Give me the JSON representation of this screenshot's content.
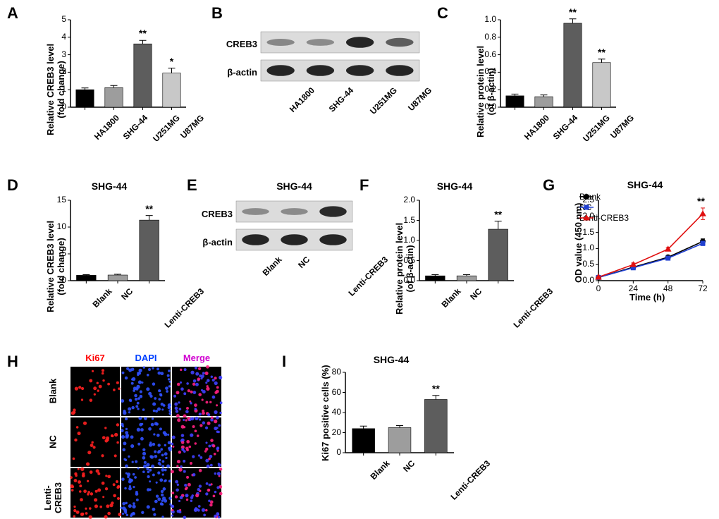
{
  "panelA": {
    "label": "A",
    "type": "bar",
    "ylabel": "Relative CREB3 level\n(fold change)",
    "categories": [
      "HA1800",
      "SHG-44",
      "U251MG",
      "U87MG"
    ],
    "values": [
      1.0,
      1.12,
      3.62,
      1.95
    ],
    "errors": [
      0.1,
      0.12,
      0.2,
      0.28
    ],
    "sig": [
      "",
      "",
      "**",
      "*"
    ],
    "bar_colors": [
      "#000000",
      "#9d9d9d",
      "#5d5d5d",
      "#c8c8c8"
    ],
    "ylim": [
      0,
      5
    ],
    "ytick_step": 1
  },
  "panelB": {
    "label": "B",
    "type": "western",
    "rows": [
      "CREB3",
      "β-actin"
    ],
    "lanes": [
      "HA1800",
      "SHG-44",
      "U251MG",
      "U87MG"
    ]
  },
  "panelC": {
    "label": "C",
    "type": "bar",
    "ylabel": "Relative protein level\n(of β-actin)",
    "categories": [
      "HA1800",
      "SHG-44",
      "U251MG",
      "U87MG"
    ],
    "values": [
      0.13,
      0.12,
      0.96,
      0.51
    ],
    "errors": [
      0.02,
      0.02,
      0.05,
      0.04
    ],
    "sig": [
      "",
      "",
      "**",
      "**"
    ],
    "bar_colors": [
      "#000000",
      "#9d9d9d",
      "#5d5d5d",
      "#c8c8c8"
    ],
    "ylim": [
      0,
      1.0
    ],
    "ytick_step": 0.2
  },
  "panelD": {
    "label": "D",
    "type": "bar",
    "ylabel": "Relative CREB3 level\n(fold change)",
    "title": "SHG-44",
    "categories": [
      "Blank",
      "NC",
      "Lenti-CREB3"
    ],
    "values": [
      1.0,
      1.05,
      11.3
    ],
    "errors": [
      0.12,
      0.15,
      0.85
    ],
    "sig": [
      "",
      "",
      "**"
    ],
    "bar_colors": [
      "#000000",
      "#9d9d9d",
      "#5d5d5d"
    ],
    "ylim": [
      0,
      15
    ],
    "ytick_step": 5
  },
  "panelE": {
    "label": "E",
    "type": "western",
    "title": "SHG-44",
    "rows": [
      "CREB3",
      "β-actin"
    ],
    "lanes": [
      "Blank",
      "NC",
      "Lenti-CREB3"
    ]
  },
  "panelF": {
    "label": "F",
    "type": "bar",
    "ylabel": "Relative protein level\n(of β-actin)",
    "title": "SHG-44",
    "categories": [
      "Blank",
      "NC",
      "Lenti-CREB3"
    ],
    "values": [
      0.12,
      0.12,
      1.28
    ],
    "errors": [
      0.03,
      0.03,
      0.2
    ],
    "sig": [
      "",
      "",
      "**"
    ],
    "bar_colors": [
      "#000000",
      "#9d9d9d",
      "#5d5d5d"
    ],
    "ylim": [
      0,
      2.0
    ],
    "ytick_step": 0.5
  },
  "panelG": {
    "label": "G",
    "type": "line",
    "title": "SHG-44",
    "xlabel": "Time (h)",
    "ylabel": "OD value (450 nm)",
    "x": [
      0,
      24,
      48,
      72
    ],
    "series": [
      {
        "name": "Blank",
        "color": "#000000",
        "marker": "circle",
        "y": [
          0.1,
          0.42,
          0.73,
          1.22
        ],
        "err": [
          0.02,
          0.03,
          0.04,
          0.08
        ]
      },
      {
        "name": "NC",
        "color": "#2040d0",
        "marker": "square",
        "y": [
          0.1,
          0.4,
          0.7,
          1.16
        ],
        "err": [
          0.02,
          0.03,
          0.04,
          0.07
        ]
      },
      {
        "name": "Lenti-CREB3",
        "color": "#e01010",
        "marker": "triangle",
        "y": [
          0.11,
          0.5,
          0.98,
          2.08
        ],
        "err": [
          0.03,
          0.05,
          0.06,
          0.18
        ]
      }
    ],
    "xlim": [
      0,
      72
    ],
    "ylim": [
      0,
      2.5
    ],
    "ytick_step": 0.5,
    "sig_point": "**"
  },
  "panelH": {
    "label": "H",
    "type": "micrographs",
    "cols": [
      "Ki67",
      "DAPI",
      "Merge"
    ],
    "rows": [
      "Blank",
      "NC",
      "Lenti-\nCREB3"
    ],
    "col_colors": [
      "#ff0000",
      "#0040ff",
      "#d000d0"
    ]
  },
  "panelI": {
    "label": "I",
    "type": "bar",
    "title": "SHG-44",
    "ylabel": "Ki67 positive cells (%)",
    "categories": [
      "Blank",
      "NC",
      "Lenti-CREB3"
    ],
    "values": [
      24,
      25,
      53
    ],
    "errors": [
      2.5,
      2,
      4
    ],
    "sig": [
      "",
      "",
      "**"
    ],
    "bar_colors": [
      "#000000",
      "#9d9d9d",
      "#5d5d5d"
    ],
    "ylim": [
      0,
      80
    ],
    "ytick_step": 20
  }
}
